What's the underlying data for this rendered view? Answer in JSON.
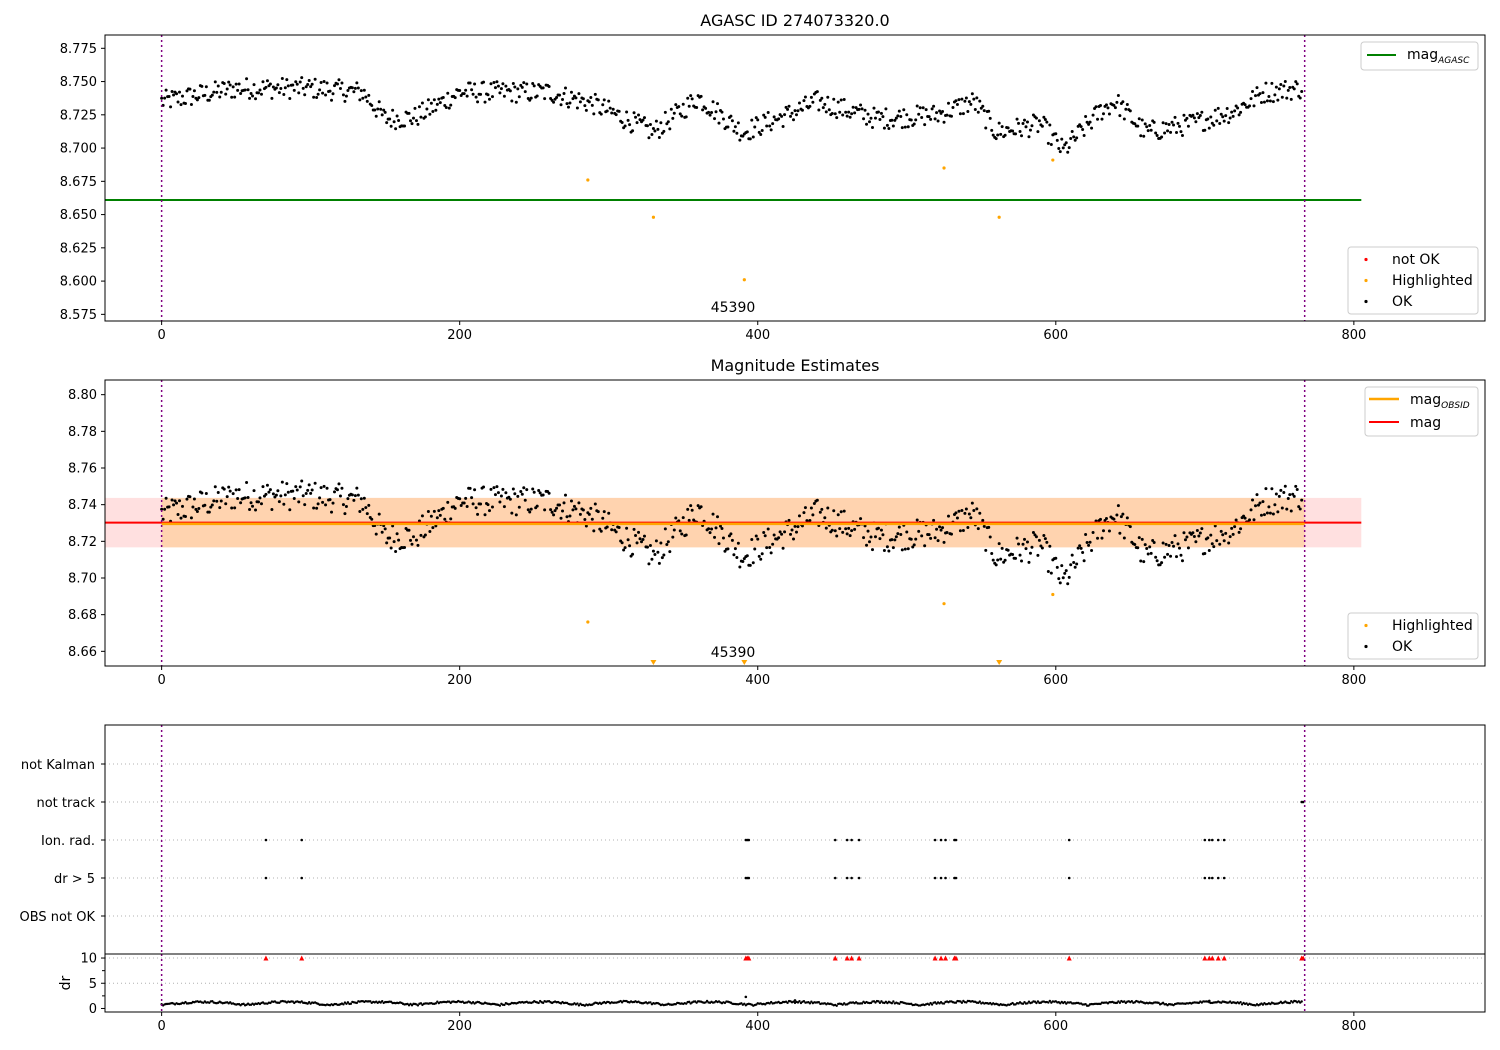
{
  "chart_data": [
    {
      "type": "scatter",
      "title": "AGASC ID 274073320.0",
      "xlim": [
        -38,
        888
      ],
      "ylim": [
        8.57,
        8.785
      ],
      "xticks": [
        0,
        200,
        400,
        600,
        800
      ],
      "yticks": [
        8.575,
        8.6,
        8.625,
        8.65,
        8.675,
        8.7,
        8.725,
        8.75,
        8.775
      ],
      "ytick_labels": [
        "8.575",
        "8.600",
        "8.625",
        "8.650",
        "8.675",
        "8.700",
        "8.725",
        "8.750",
        "8.775"
      ],
      "vertical_lines_x": [
        0,
        767
      ],
      "annotation": {
        "text": "45390",
        "x": 383
      },
      "mag_agasc": {
        "y": 8.661,
        "x_range": [
          -38,
          805
        ],
        "color": "#008000"
      },
      "legend_top": [
        {
          "label": "mag",
          "sub": "AGASC",
          "color": "#008000"
        }
      ],
      "legend_bottom": [
        {
          "label": "not OK",
          "color": "#ff0000"
        },
        {
          "label": "Highlighted",
          "color": "#ffa500"
        },
        {
          "label": "OK",
          "color": "#000000"
        }
      ],
      "highlighted_points": [
        {
          "x": 286,
          "y": 8.676
        },
        {
          "x": 330,
          "y": 8.648
        },
        {
          "x": 391,
          "y": 8.601
        },
        {
          "x": 525,
          "y": 8.685
        },
        {
          "x": 562,
          "y": 8.648
        },
        {
          "x": 598,
          "y": 8.691
        }
      ],
      "ok_segments": [
        {
          "x": [
            0,
            765
          ],
          "y": [
            8.746,
            8.745
          ]
        }
      ]
    },
    {
      "type": "scatter",
      "title": "Magnitude Estimates",
      "xlim": [
        -38,
        888
      ],
      "ylim": [
        8.652,
        8.808
      ],
      "xticks": [
        0,
        200,
        400,
        600,
        800
      ],
      "yticks": [
        8.66,
        8.68,
        8.7,
        8.72,
        8.74,
        8.76,
        8.78,
        8.8
      ],
      "ytick_labels": [
        "8.66",
        "8.68",
        "8.70",
        "8.72",
        "8.74",
        "8.76",
        "8.78",
        "8.80"
      ],
      "vertical_lines_x": [
        0,
        767
      ],
      "annotation": {
        "text": "45390",
        "x": 383
      },
      "mag": {
        "y": 8.7302,
        "band": [
          8.7167,
          8.7437
        ],
        "x_range": [
          -38,
          805
        ],
        "color": "#ff0000"
      },
      "mag_obsid": {
        "y": 8.7295,
        "band": [
          8.7167,
          8.7437
        ],
        "x_range": [
          0,
          767
        ],
        "color": "#ffa500"
      },
      "legend_top": [
        {
          "label": "mag",
          "sub": "OBSID",
          "color": "#ffa500"
        },
        {
          "label": "mag",
          "sub": "",
          "color": "#ff0000"
        }
      ],
      "legend_bottom": [
        {
          "label": "Highlighted",
          "color": "#ffa500"
        },
        {
          "label": "OK",
          "color": "#000000"
        }
      ],
      "highlighted_points": [
        {
          "x": 286,
          "y": 8.676
        },
        {
          "x": 525,
          "y": 8.686
        },
        {
          "x": 598,
          "y": 8.691
        }
      ],
      "clipped_markers_x": [
        330,
        391,
        562
      ]
    },
    {
      "type": "scatter",
      "title": "",
      "xlim": [
        -38,
        888
      ],
      "categories": [
        "not Kalman",
        "not track",
        "Ion. rad.",
        "dr > 5",
        "OBS not OK"
      ],
      "flags": {
        "not Kalman": [],
        "not track": [
          765,
          766
        ],
        "Ion. rad.": [
          70,
          94,
          392,
          393,
          394,
          452,
          460,
          463,
          468,
          519,
          523,
          526,
          532,
          533,
          609,
          700,
          703,
          705,
          709,
          713
        ],
        "dr > 5": [
          70,
          94,
          392,
          393,
          394,
          452,
          460,
          463,
          468,
          519,
          523,
          526,
          532,
          533,
          609,
          700,
          703,
          705,
          709,
          713
        ],
        "OBS not OK": []
      }
    },
    {
      "type": "scatter",
      "title": "",
      "ylabel": "dr",
      "xlim": [
        -38,
        888
      ],
      "ylim": [
        -0.7,
        10.8
      ],
      "xticks": [
        0,
        200,
        400,
        600,
        800
      ],
      "yticks": [
        0,
        5,
        10
      ],
      "ytick_labels": [
        "0",
        "5",
        "10"
      ],
      "clipped_markers_x": [
        70,
        94,
        392,
        393,
        394,
        452,
        460,
        463,
        468,
        519,
        523,
        526,
        532,
        533,
        609,
        700,
        703,
        705,
        709,
        713,
        765,
        766
      ],
      "outliers": [
        {
          "x": 392,
          "y": 2.3
        },
        {
          "x": 425,
          "y": 1.6
        },
        {
          "x": 703,
          "y": 1.5
        }
      ]
    }
  ]
}
